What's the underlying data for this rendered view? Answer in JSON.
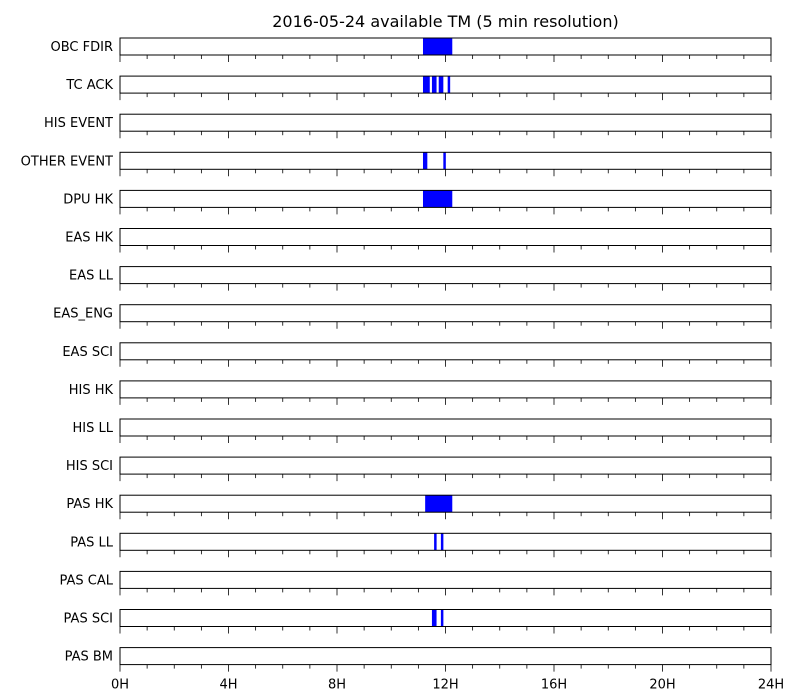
{
  "chart_data": {
    "type": "timeline",
    "title": "2016-05-24 available TM (5 min resolution)",
    "x_unit": "hour",
    "xlim": [
      0,
      24
    ],
    "major_ticks": [
      0,
      4,
      8,
      12,
      16,
      20,
      24
    ],
    "tick_labels": [
      "0H",
      "4H",
      "8H",
      "12H",
      "16H",
      "20H",
      "24H"
    ],
    "minor_tick_step": 1,
    "bar_color": "#0000ff",
    "rows": [
      {
        "name": "OBC FDIR",
        "intervals": [
          [
            11.17,
            12.25
          ]
        ]
      },
      {
        "name": "TC ACK",
        "intervals": [
          [
            11.17,
            11.42
          ],
          [
            11.5,
            11.67
          ],
          [
            11.75,
            11.92
          ],
          [
            12.08,
            12.17
          ]
        ]
      },
      {
        "name": "HIS EVENT",
        "intervals": []
      },
      {
        "name": "OTHER EVENT",
        "intervals": [
          [
            11.17,
            11.33
          ],
          [
            11.92,
            12.0
          ]
        ]
      },
      {
        "name": "DPU HK",
        "intervals": [
          [
            11.17,
            12.25
          ]
        ]
      },
      {
        "name": "EAS HK",
        "intervals": []
      },
      {
        "name": "EAS LL",
        "intervals": []
      },
      {
        "name": "EAS_ENG",
        "intervals": []
      },
      {
        "name": "EAS SCI",
        "intervals": []
      },
      {
        "name": "HIS HK",
        "intervals": []
      },
      {
        "name": "HIS LL",
        "intervals": []
      },
      {
        "name": "HIS SCI",
        "intervals": []
      },
      {
        "name": "PAS HK",
        "intervals": [
          [
            11.25,
            12.25
          ]
        ]
      },
      {
        "name": "PAS LL",
        "intervals": [
          [
            11.58,
            11.67
          ],
          [
            11.83,
            11.92
          ]
        ]
      },
      {
        "name": "PAS CAL",
        "intervals": []
      },
      {
        "name": "PAS SCI",
        "intervals": [
          [
            11.5,
            11.67
          ],
          [
            11.83,
            11.92
          ]
        ]
      },
      {
        "name": "PAS BM",
        "intervals": []
      }
    ]
  }
}
